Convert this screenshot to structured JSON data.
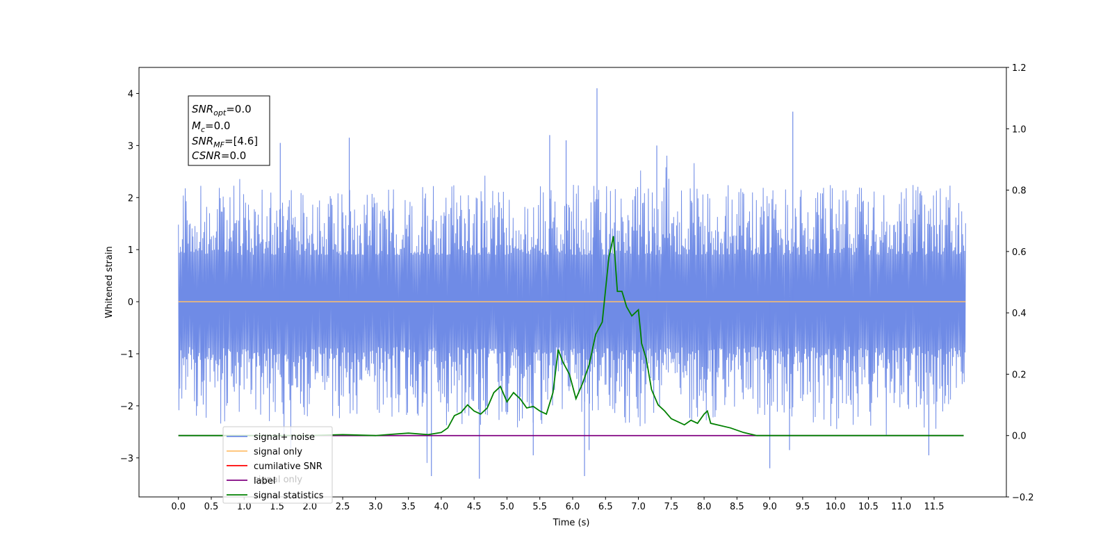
{
  "chart_data": {
    "type": "line",
    "title": "",
    "xlabel": "Time (s)",
    "ylabel": "Whitened strain",
    "xlim": [
      -0.6,
      12.6
    ],
    "ylim": [
      -3.75,
      4.5
    ],
    "y2lim": [
      -0.2,
      1.2
    ],
    "x_ticks": [
      "0.0",
      "0.5",
      "1.0",
      "1.5",
      "2.0",
      "2.5",
      "3.0",
      "3.5",
      "4.0",
      "4.5",
      "5.0",
      "5.5",
      "6.0",
      "6.5",
      "7.0",
      "7.5",
      "8.0",
      "8.5",
      "9.0",
      "9.5",
      "10.0",
      "10.5",
      "11.0",
      "11.5"
    ],
    "y_ticks": [
      "4",
      "3",
      "2",
      "1",
      "0",
      "−1",
      "−2",
      "−3"
    ],
    "y2_ticks": [
      "1.2",
      "1.0",
      "0.8",
      "0.6",
      "0.4",
      "0.2",
      "0.0",
      "−0.2"
    ],
    "annotation": {
      "snr_opt": {
        "base": "SNR",
        "sub": "opt",
        "value": "=0.0"
      },
      "mc": {
        "base": "M",
        "sub": "c",
        "value": "=0.0"
      },
      "snr_mf": {
        "base": "SNR",
        "sub": "MF",
        "value": "=[4.6]"
      },
      "csnr": {
        "base": "CSNR",
        "value": "=0.0"
      }
    },
    "legend_placement": "lower-left",
    "legend": [
      {
        "label": "signal+ noise",
        "color": "#6f8be6"
      },
      {
        "label": "signal only",
        "color": "#ffbf6b"
      },
      {
        "label": "cumilative SNR",
        "color": "#ff0000"
      },
      {
        "label": "label",
        "color": "#800080"
      },
      {
        "label": "signal statistics",
        "color": "#008000"
      }
    ],
    "hidden_legend_text": "signal only",
    "series": [
      {
        "name": "signal+ noise",
        "axis": "left",
        "color": "#6f8be6",
        "style": "dense noise",
        "envelope": [
          -2.3,
          2.3
        ],
        "spikes": [
          {
            "x": 6.37,
            "y": 4.1
          },
          {
            "x": 9.35,
            "y": 3.65
          },
          {
            "x": 5.65,
            "y": 3.2
          },
          {
            "x": 2.6,
            "y": 3.15
          },
          {
            "x": 5.9,
            "y": 3.1
          },
          {
            "x": 7.28,
            "y": 3.0
          },
          {
            "x": 1.55,
            "y": 3.05
          },
          {
            "x": 3.85,
            "y": -3.35
          },
          {
            "x": 4.58,
            "y": -3.4
          },
          {
            "x": 6.18,
            "y": -3.35
          },
          {
            "x": 9.0,
            "y": -3.2
          },
          {
            "x": 11.42,
            "y": -2.95
          },
          {
            "x": 6.25,
            "y": -2.85
          },
          {
            "x": 9.3,
            "y": -2.85
          },
          {
            "x": 5.4,
            "y": -2.95
          }
        ]
      },
      {
        "name": "signal only",
        "axis": "left",
        "color": "#ffbf6b",
        "x": [
          0.0,
          11.98
        ],
        "y": [
          0.0,
          0.0
        ]
      },
      {
        "name": "label",
        "axis": "right",
        "color": "#800080",
        "x": [
          0.0,
          11.95
        ],
        "y": [
          0.0,
          0.0
        ]
      },
      {
        "name": "signal statistics",
        "axis": "right",
        "color": "#008000",
        "x": [
          0.0,
          2.0,
          2.5,
          3.0,
          3.3,
          3.5,
          3.8,
          4.0,
          4.1,
          4.2,
          4.3,
          4.4,
          4.5,
          4.6,
          4.7,
          4.8,
          4.9,
          5.0,
          5.1,
          5.2,
          5.3,
          5.4,
          5.5,
          5.6,
          5.7,
          5.78,
          5.85,
          5.95,
          6.05,
          6.15,
          6.25,
          6.35,
          6.45,
          6.55,
          6.62,
          6.68,
          6.75,
          6.82,
          6.9,
          7.0,
          7.05,
          7.12,
          7.2,
          7.3,
          7.4,
          7.5,
          7.6,
          7.7,
          7.8,
          7.9,
          8.0,
          8.05,
          8.1,
          8.2,
          8.4,
          8.6,
          8.8,
          9.0,
          11.95
        ],
        "y": [
          0.0,
          0.0,
          0.003,
          0.0,
          0.005,
          0.008,
          0.003,
          0.01,
          0.025,
          0.065,
          0.075,
          0.1,
          0.08,
          0.07,
          0.09,
          0.14,
          0.16,
          0.11,
          0.14,
          0.12,
          0.09,
          0.095,
          0.08,
          0.07,
          0.14,
          0.28,
          0.24,
          0.2,
          0.12,
          0.17,
          0.23,
          0.33,
          0.37,
          0.58,
          0.65,
          0.47,
          0.47,
          0.42,
          0.39,
          0.41,
          0.3,
          0.25,
          0.15,
          0.1,
          0.08,
          0.055,
          0.045,
          0.035,
          0.05,
          0.04,
          0.07,
          0.08,
          0.04,
          0.035,
          0.025,
          0.01,
          0.0,
          0.0,
          0.0
        ]
      }
    ]
  }
}
